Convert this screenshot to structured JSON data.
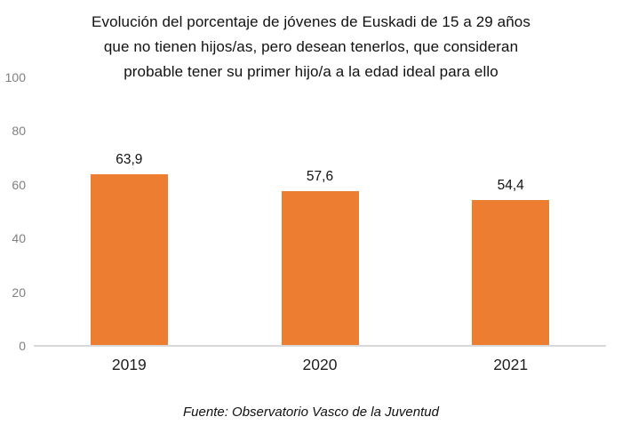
{
  "chart": {
    "title_lines": [
      "Evolución del porcentaje de jóvenes de Euskadi de 15 a 29 años",
      "que no tienen hijos/as, pero desean tenerlos, que consideran",
      "probable tener su primer hijo/a a la edad ideal para ello"
    ],
    "source_note": "Fuente: Observatorio Vasco de la Juventud"
  },
  "colors": {
    "bar": "#ED7D31",
    "axis_line": "#D9D9D9",
    "tick_label": "#7F7F7F",
    "text": "#111111"
  },
  "chart_data": {
    "type": "bar",
    "title": "Evolución del porcentaje de jóvenes de Euskadi de 15 a 29 años que no tienen hijos/as, pero desean tenerlos, que consideran probable tener su primer hijo/a a la edad ideal para ello",
    "categories": [
      "2019",
      "2020",
      "2021"
    ],
    "values": [
      63.9,
      57.6,
      54.4
    ],
    "value_labels": [
      "63,9",
      "57,6",
      "54,4"
    ],
    "xlabel": "",
    "ylabel": "",
    "ylim": [
      0,
      100
    ],
    "yticks": [
      0,
      20,
      40,
      60,
      80,
      100
    ],
    "grid": false,
    "legend": false,
    "source": "Fuente: Observatorio Vasco de la Juventud"
  }
}
